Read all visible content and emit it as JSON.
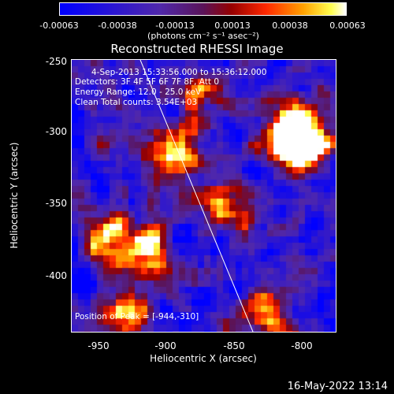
{
  "colorbar": {
    "ticks": [
      "-0.00063",
      "-0.00038",
      "-0.00013",
      "0.00013",
      "0.00038",
      "0.00063"
    ],
    "units": "(photons cm⁻² s⁻¹ asec⁻²)"
  },
  "title": "Reconstructed RHESSI Image",
  "annotation": {
    "line1": "4-Sep-2013 15:33:56.000 to 15:36:12.000",
    "line2": "Detectors: 3F 4F 5F 6F 7F 8F, Att 0",
    "line3": "Energy Range: 12.0 - 25.0 keV",
    "line4": "Clean     Total counts: 3.54E+03",
    "peak": "Position of Peak = [-944,-310]"
  },
  "axes": {
    "xlabel": "Heliocentric X (arcsec)",
    "ylabel": "Heliocentric Y (arcsec)",
    "xticks": [
      "-950",
      "-900",
      "-850",
      "-800"
    ],
    "yticks": [
      "-250",
      "-300",
      "-350",
      "-400"
    ]
  },
  "timestamp": "16-May-2022 13:14"
}
